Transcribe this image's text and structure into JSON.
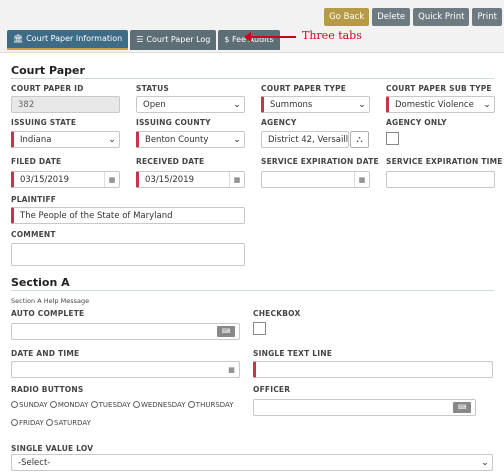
{
  "toolbar": {
    "go_back": "Go Back",
    "delete": "Delete",
    "quick_print": "Quick Print",
    "print": "Print"
  },
  "tabs": [
    {
      "label": "Court Paper Information",
      "icon": "bank-icon"
    },
    {
      "label": "Court Paper Log",
      "icon": "list-icon"
    },
    {
      "label": "$ Fee Audits",
      "icon": ""
    }
  ],
  "annotation": {
    "label": "Three tabs"
  },
  "court_paper": {
    "title": "Court Paper",
    "id_label": "Court Paper ID",
    "id_value": "382",
    "status_label": "Status",
    "status_value": "Open",
    "type_label": "Court Paper Type",
    "type_value": "Summons",
    "subtype_label": "Court Paper Sub Type",
    "subtype_value": "Domestic Violence",
    "state_label": "Issuing State",
    "state_value": "Indiana",
    "county_label": "Issuing County",
    "county_value": "Benton County",
    "agency_label": "Agency",
    "agency_value": "District 42, Versaill",
    "agency_only_label": "Agency Only",
    "filed_label": "Filed Date",
    "filed_value": "03/15/2019",
    "received_label": "Received Date",
    "received_value": "03/15/2019",
    "svc_exp_date_label": "Service Expiration Date",
    "svc_exp_time_label": "Service Expiration Time",
    "plaintiff_label": "Plaintiff",
    "plaintiff_value": "The People of the State of Maryland",
    "comment_label": "Comment"
  },
  "section_a": {
    "title": "Section A",
    "help": "Section A Help Message",
    "auto_label": "Auto Complete",
    "checkbox_label": "Checkbox",
    "datetime_label": "Date and Time",
    "single_text_label": "Single Text Line",
    "radio_label": "Radio Buttons",
    "radio_options": [
      "Sunday",
      "Monday",
      "Tuesday",
      "Wednesday",
      "Thursday",
      "Friday",
      "Saturday"
    ],
    "officer_label": "Officer",
    "lov_label": "Single Value LOV",
    "lov_value": "-Select-"
  },
  "colors": {
    "accent_gold": "#b79a45",
    "tab_active": "#3e6b86",
    "required_marker": "#c8324b",
    "annotation_red": "#d0021b"
  }
}
